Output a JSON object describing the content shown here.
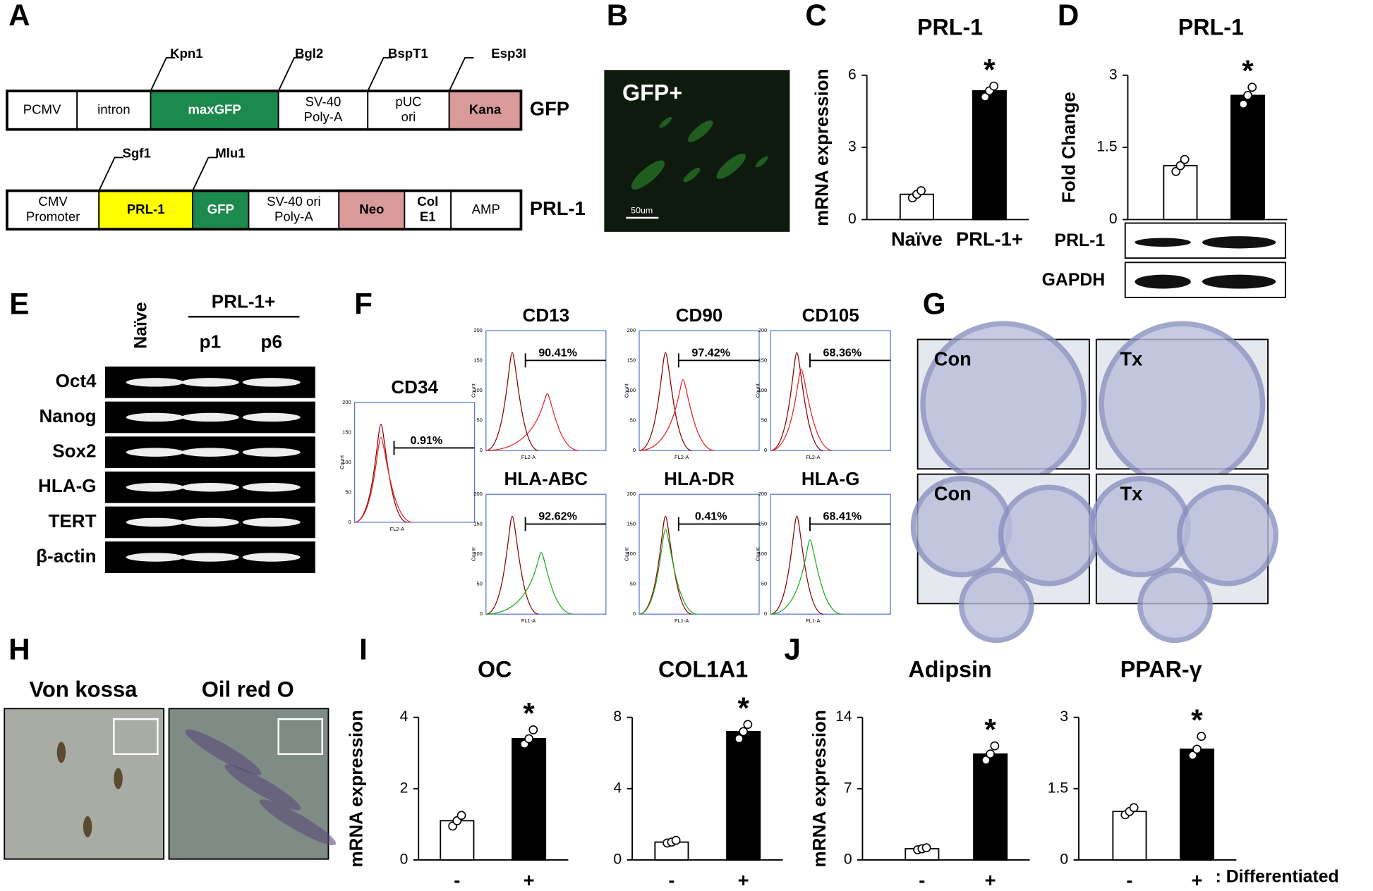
{
  "panel_labels": [
    "A",
    "B",
    "C",
    "D",
    "E",
    "F",
    "G",
    "H",
    "I",
    "J"
  ],
  "plasmids": [
    {
      "name": "GFP",
      "sites": [
        "Kpn1",
        "Bgl2",
        "BspT1",
        "Esp3I"
      ],
      "segments": [
        {
          "lines": [
            "PCMV"
          ],
          "color": "#ffffff"
        },
        {
          "lines": [
            "intron"
          ],
          "color": "#ffffff"
        },
        {
          "lines": [
            "maxGFP"
          ],
          "color": "#1b8a4c"
        },
        {
          "lines": [
            "SV-40",
            "Poly-A"
          ],
          "color": "#ffffff"
        },
        {
          "lines": [
            "pUC",
            "ori"
          ],
          "color": "#ffffff"
        },
        {
          "lines": [
            "Kana"
          ],
          "color": "#d99a9a"
        }
      ]
    },
    {
      "name": "PRL-1",
      "sites": [
        "Sgf1",
        "Mlu1"
      ],
      "segments": [
        {
          "lines": [
            "CMV",
            "Promoter"
          ],
          "color": "#ffffff"
        },
        {
          "lines": [
            "PRL-1"
          ],
          "color": "#ffff00"
        },
        {
          "lines": [
            "GFP"
          ],
          "color": "#1b8a4c"
        },
        {
          "lines": [
            "SV-40 ori",
            "Poly-A"
          ],
          "color": "#ffffff"
        },
        {
          "lines": [
            "Neo"
          ],
          "color": "#d99a9a"
        },
        {
          "lines": [
            "Col",
            "E1"
          ],
          "color": "#ffffff"
        },
        {
          "lines": [
            "AMP"
          ],
          "color": "#ffffff"
        }
      ]
    }
  ],
  "gfp_image": {
    "label": "GFP+",
    "scale": "50um"
  },
  "chart_data": [
    {
      "type": "bar",
      "title": "PRL-1",
      "ylabel": "mRNA expression",
      "categories": [
        "Naïve",
        "PRL-1+"
      ],
      "values": [
        1.05,
        5.35
      ],
      "points": [
        [
          0.9,
          1.05,
          1.2
        ],
        [
          5.1,
          5.35,
          5.55
        ]
      ],
      "colors": [
        "#ffffff",
        "#000000"
      ],
      "ylim": [
        0,
        6
      ],
      "yticks": [
        0,
        3,
        6
      ],
      "annotation": "*"
    },
    {
      "type": "bar",
      "title": "PRL-1",
      "ylabel": "Fold Change",
      "categories": [
        null,
        null
      ],
      "values": [
        1.12,
        2.58
      ],
      "points": [
        [
          1.0,
          1.12,
          1.25
        ],
        [
          2.4,
          2.58,
          2.75
        ]
      ],
      "colors": [
        "#ffffff",
        "#000000"
      ],
      "ylim": [
        0,
        3
      ],
      "yticks": [
        0,
        1.5,
        3
      ],
      "annotation": "*"
    },
    {
      "type": "bar",
      "title": "OC",
      "ylabel": "mRNA expression",
      "categories": [
        "-",
        "+"
      ],
      "values": [
        1.1,
        3.4
      ],
      "points": [
        [
          0.95,
          1.1,
          1.25
        ],
        [
          3.25,
          3.4,
          3.65
        ]
      ],
      "colors": [
        "#ffffff",
        "#000000"
      ],
      "ylim": [
        0,
        4
      ],
      "yticks": [
        0,
        2,
        4
      ],
      "annotation": "*"
    },
    {
      "type": "bar",
      "title": "COL1A1",
      "categories": [
        "-",
        "+"
      ],
      "values": [
        1.0,
        7.2
      ],
      "points": [
        [
          0.95,
          1.0,
          1.1
        ],
        [
          6.8,
          7.2,
          7.6
        ]
      ],
      "colors": [
        "#ffffff",
        "#000000"
      ],
      "ylim": [
        0,
        8
      ],
      "yticks": [
        0,
        4,
        8
      ],
      "annotation": "*"
    },
    {
      "type": "bar",
      "title": "Adipsin",
      "ylabel": "mRNA expression",
      "categories": [
        "-",
        "+"
      ],
      "values": [
        1.1,
        10.4
      ],
      "points": [
        [
          1.0,
          1.1,
          1.2
        ],
        [
          9.8,
          10.4,
          11.2
        ]
      ],
      "colors": [
        "#ffffff",
        "#000000"
      ],
      "ylim": [
        0,
        14
      ],
      "yticks": [
        0,
        7,
        14
      ],
      "annotation": "*"
    },
    {
      "type": "bar",
      "title": "PPAR-γ",
      "categories": [
        "-",
        "+"
      ],
      "values": [
        1.02,
        2.33
      ],
      "points": [
        [
          0.95,
          1.02,
          1.1
        ],
        [
          2.2,
          2.33,
          2.6
        ]
      ],
      "colors": [
        "#ffffff",
        "#000000"
      ],
      "ylim": [
        0,
        3
      ],
      "yticks": [
        0,
        1.5,
        3
      ],
      "annotation": "*"
    }
  ],
  "western": {
    "bands": [
      "PRL-1",
      "GAPDH"
    ]
  },
  "pcr": {
    "group": "PRL-1+",
    "columns": [
      "Naïve",
      "p1",
      "p6"
    ],
    "genes": [
      "Oct4",
      "Nanog",
      "Sox2",
      "HLA-G",
      "TERT",
      "β-actin"
    ]
  },
  "flow_axis": {
    "ylabel": "Count",
    "yticks": [
      0,
      50,
      100,
      150,
      200
    ]
  },
  "flow": [
    {
      "marker": "CD34",
      "percent": "0.91%",
      "xlabel": "FL2-A"
    },
    {
      "marker": "CD13",
      "percent": "90.41%",
      "xlabel": "FL2-A"
    },
    {
      "marker": "CD90",
      "percent": "97.42%",
      "xlabel": "FL2-A"
    },
    {
      "marker": "CD105",
      "percent": "68.36%",
      "xlabel": "FL2-A"
    },
    {
      "marker": "HLA-ABC",
      "percent": "92.62%",
      "xlabel": "FL1-A"
    },
    {
      "marker": "HLA-DR",
      "percent": "0.41%",
      "xlabel": "FL1-A"
    },
    {
      "marker": "HLA-G",
      "percent": "68.41%",
      "xlabel": "FL1-A"
    }
  ],
  "histology": {
    "labels": [
      "Con",
      "Tx",
      "Con",
      "Tx"
    ]
  },
  "staining": [
    "Von kossa",
    "Oil red O"
  ],
  "differentiated_label": ": Differentiated"
}
